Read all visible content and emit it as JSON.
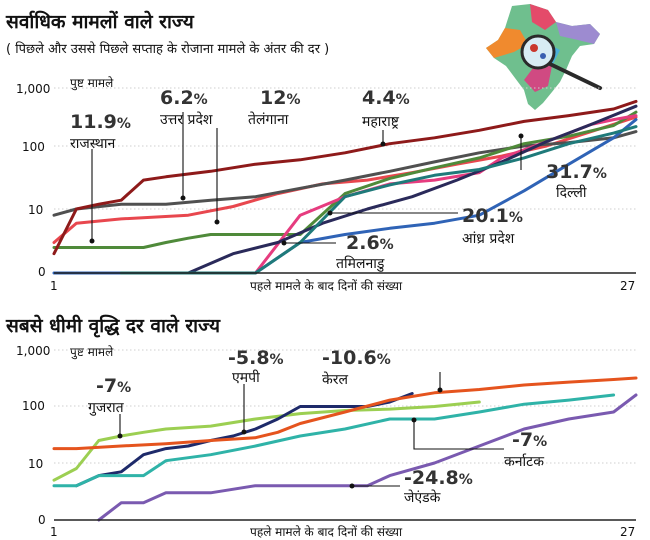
{
  "chart_data": [
    {
      "type": "line",
      "title": "सर्वाधिक मामलों वाले राज्य",
      "subtitle": "( पिछले और उससे पिछले सप्ताह के रोजाना मामले के अंतर की दर )",
      "xlabel": "पहले मामले के बाद दिनों की संख्या",
      "ylabel": "पुष्ट मामले",
      "yscale": "log",
      "xlim": [
        1,
        27
      ],
      "x_ticks": [
        "1",
        "27"
      ],
      "y_ticks": [
        "0",
        "10",
        "100",
        "1,000"
      ],
      "grid": true,
      "series": [
        {
          "name": "राजस्थान",
          "rate": "11.9",
          "color": "#e8474e",
          "x": [
            1,
            2,
            4,
            7,
            9,
            11,
            13,
            15,
            17,
            19,
            21,
            23,
            25,
            27
          ],
          "y": [
            3,
            6,
            7,
            8,
            11,
            18,
            26,
            30,
            40,
            55,
            75,
            110,
            190,
            330
          ]
        },
        {
          "name": "उत्तर प्रदेश",
          "rate": "6.2",
          "color": "#505050",
          "x": [
            1,
            2,
            4,
            6,
            8,
            10,
            12,
            14,
            16,
            18,
            20,
            22,
            24,
            26,
            27
          ],
          "y": [
            8,
            10,
            12,
            12,
            14,
            16,
            22,
            30,
            42,
            60,
            85,
            110,
            125,
            150,
            190
          ]
        },
        {
          "name": "तेलंगाना",
          "rate": "12",
          "color": "#4f8a3a",
          "x": [
            1,
            3,
            5,
            6,
            7,
            8,
            10,
            12,
            14,
            16,
            18,
            20,
            22,
            24,
            26,
            27
          ],
          "y": [
            2.5,
            2.5,
            2.5,
            3,
            3.5,
            4,
            4,
            4,
            18,
            32,
            48,
            70,
            120,
            160,
            240,
            400
          ]
        },
        {
          "name": "महाराष्ट्र",
          "rate": "4.4",
          "color": "#8e1a1a",
          "x": [
            1,
            2,
            3,
            4,
            5,
            6,
            8,
            10,
            12,
            14,
            16,
            18,
            20,
            22,
            24,
            26,
            27
          ],
          "y": [
            2,
            10,
            12,
            14,
            30,
            34,
            42,
            55,
            65,
            85,
            120,
            150,
            200,
            280,
            350,
            450,
            600
          ]
        },
        {
          "name": "दिल्ली",
          "rate": "31.7",
          "color": "#e63c7f",
          "x": [
            4,
            6,
            8,
            10,
            12,
            14,
            16,
            18,
            20,
            21,
            22,
            23,
            24,
            25,
            26,
            27
          ],
          "y": [
            1,
            1,
            1,
            1,
            8,
            16,
            26,
            30,
            40,
            70,
            95,
            130,
            180,
            250,
            300,
            350
          ]
        },
        {
          "name": "आंध्र प्रदेश",
          "rate": "20.1",
          "color": "#2f63b6",
          "x": [
            1,
            6,
            8,
            10,
            12,
            14,
            16,
            18,
            20,
            22,
            24,
            26,
            27
          ],
          "y": [
            1,
            1,
            1,
            1,
            3,
            4,
            5,
            6,
            8,
            20,
            55,
            150,
            300
          ]
        },
        {
          "name": "तमिलनाडु",
          "rate": "2.6",
          "color": "#2a2a5a",
          "x": [
            6,
            7,
            9,
            11,
            13,
            15,
            17,
            19,
            21,
            23,
            25,
            27
          ],
          "y": [
            1,
            1,
            2,
            3,
            6,
            10,
            16,
            30,
            60,
            130,
            250,
            500
          ]
        },
        {
          "name": "",
          "rate": "",
          "color": "#1f7a7a",
          "x": [
            4,
            6,
            8,
            10,
            12,
            14,
            16,
            18,
            20,
            22,
            24,
            26,
            27
          ],
          "y": [
            1,
            1,
            1,
            1,
            3,
            16,
            25,
            36,
            45,
            70,
            120,
            180,
            230
          ]
        }
      ]
    },
    {
      "type": "line",
      "title": "सबसे धीमी वृद्धि दर वाले राज्य",
      "xlabel": "पहले मामले के बाद दिनों की संख्या",
      "ylabel": "पुष्ट मामले",
      "yscale": "log",
      "xlim": [
        1,
        27
      ],
      "x_ticks": [
        "1",
        "27"
      ],
      "y_ticks": [
        "0",
        "10",
        "100",
        "1,000"
      ],
      "grid": true,
      "series": [
        {
          "name": "गुजरात",
          "rate": "-7",
          "color": "#9ccf52",
          "x": [
            1,
            2,
            3,
            4,
            5,
            6,
            8,
            10,
            12,
            14,
            16,
            18,
            20
          ],
          "y": [
            5,
            8,
            25,
            30,
            35,
            40,
            45,
            60,
            75,
            85,
            90,
            100,
            120
          ]
        },
        {
          "name": "एमपी",
          "rate": "-5.8",
          "color": "#1e2a6a",
          "x": [
            2,
            3,
            4,
            5,
            6,
            7,
            8,
            9,
            10,
            11,
            12,
            13,
            14,
            15,
            16,
            17
          ],
          "y": [
            4,
            6,
            7,
            14,
            18,
            20,
            25,
            30,
            40,
            60,
            100,
            100,
            100,
            100,
            120,
            170
          ]
        },
        {
          "name": "केरल",
          "rate": "-10.6",
          "color": "#e5541e",
          "x": [
            1,
            2,
            4,
            6,
            8,
            10,
            11,
            12,
            14,
            16,
            18,
            20,
            22,
            24,
            26,
            27
          ],
          "y": [
            18,
            18,
            20,
            22,
            25,
            28,
            35,
            50,
            80,
            130,
            175,
            200,
            240,
            270,
            300,
            320
          ]
        },
        {
          "name": "कर्नाटक",
          "rate": "-7",
          "color": "#2fb3a8",
          "x": [
            1,
            2,
            3,
            4,
            5,
            6,
            8,
            10,
            12,
            14,
            16,
            18,
            20,
            22,
            24,
            26
          ],
          "y": [
            4,
            4,
            6,
            6,
            6,
            11,
            14,
            20,
            30,
            40,
            60,
            60,
            80,
            110,
            130,
            160
          ]
        },
        {
          "name": "जेएंडके",
          "rate": "-24.8",
          "color": "#7a5ab0",
          "x": [
            3,
            4,
            5,
            6,
            8,
            10,
            12,
            14,
            15,
            16,
            18,
            20,
            22,
            24,
            26,
            27
          ],
          "y": [
            0.8,
            2,
            2,
            3,
            3,
            4,
            4,
            4,
            4,
            6,
            10,
            20,
            40,
            60,
            80,
            160
          ]
        }
      ]
    }
  ]
}
